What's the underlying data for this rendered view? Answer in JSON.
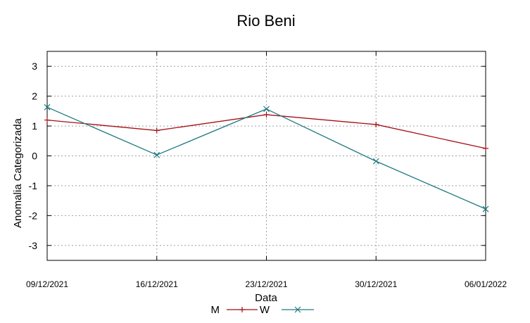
{
  "chart_data": {
    "type": "line",
    "title": "Rio Beni",
    "xlabel": "Data",
    "ylabel": "Anomalia Categorizada",
    "categories": [
      "09/12/2021",
      "16/12/2021",
      "23/12/2021",
      "30/12/2021",
      "06/01/2022"
    ],
    "ylim": [
      -3.5,
      3.5
    ],
    "yticks": [
      -3,
      -2,
      -1,
      0,
      1,
      2,
      3
    ],
    "grid": true,
    "legend_position": "bottom",
    "series": [
      {
        "name": "M",
        "values": [
          1.2,
          0.85,
          1.38,
          1.05,
          0.25
        ],
        "color": "#a50f15",
        "marker": "plus"
      },
      {
        "name": "W",
        "values": [
          1.63,
          0.03,
          1.57,
          -0.18,
          -1.78
        ],
        "color": "#1f7a80",
        "marker": "x"
      }
    ]
  }
}
